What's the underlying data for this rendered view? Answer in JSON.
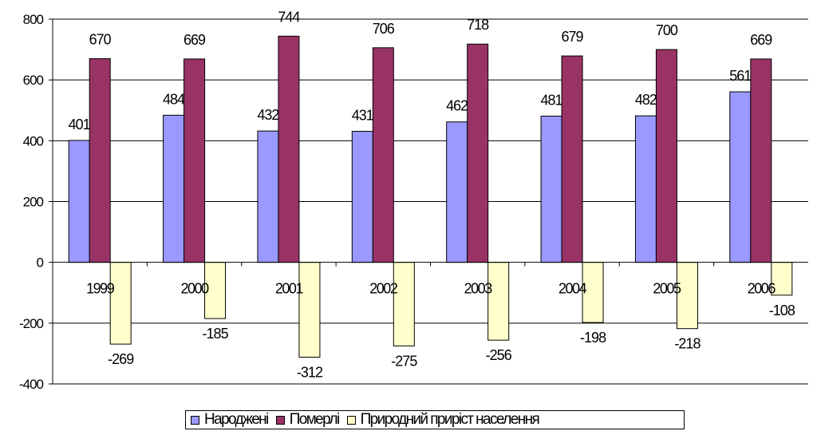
{
  "chart_data": {
    "type": "bar",
    "title": "",
    "xlabel": "",
    "ylabel": "",
    "categories": [
      "1999",
      "2000",
      "2001",
      "2002",
      "2003",
      "2004",
      "2005",
      "2006"
    ],
    "ylim": [
      -400,
      800
    ],
    "yticks": [
      -400,
      -200,
      0,
      200,
      400,
      600,
      800
    ],
    "grid": true,
    "legend_position": "bottom",
    "series": [
      {
        "name": "Народжені",
        "color": "#9999ff",
        "values": [
          401,
          484,
          432,
          431,
          462,
          481,
          482,
          561
        ]
      },
      {
        "name": "Померлі",
        "color": "#993366",
        "values": [
          670,
          669,
          744,
          706,
          718,
          679,
          700,
          669
        ]
      },
      {
        "name": "Природний приріст населення",
        "color": "#ffffcc",
        "values": [
          -269,
          -185,
          -312,
          -275,
          -256,
          -198,
          -218,
          -108
        ]
      }
    ]
  }
}
